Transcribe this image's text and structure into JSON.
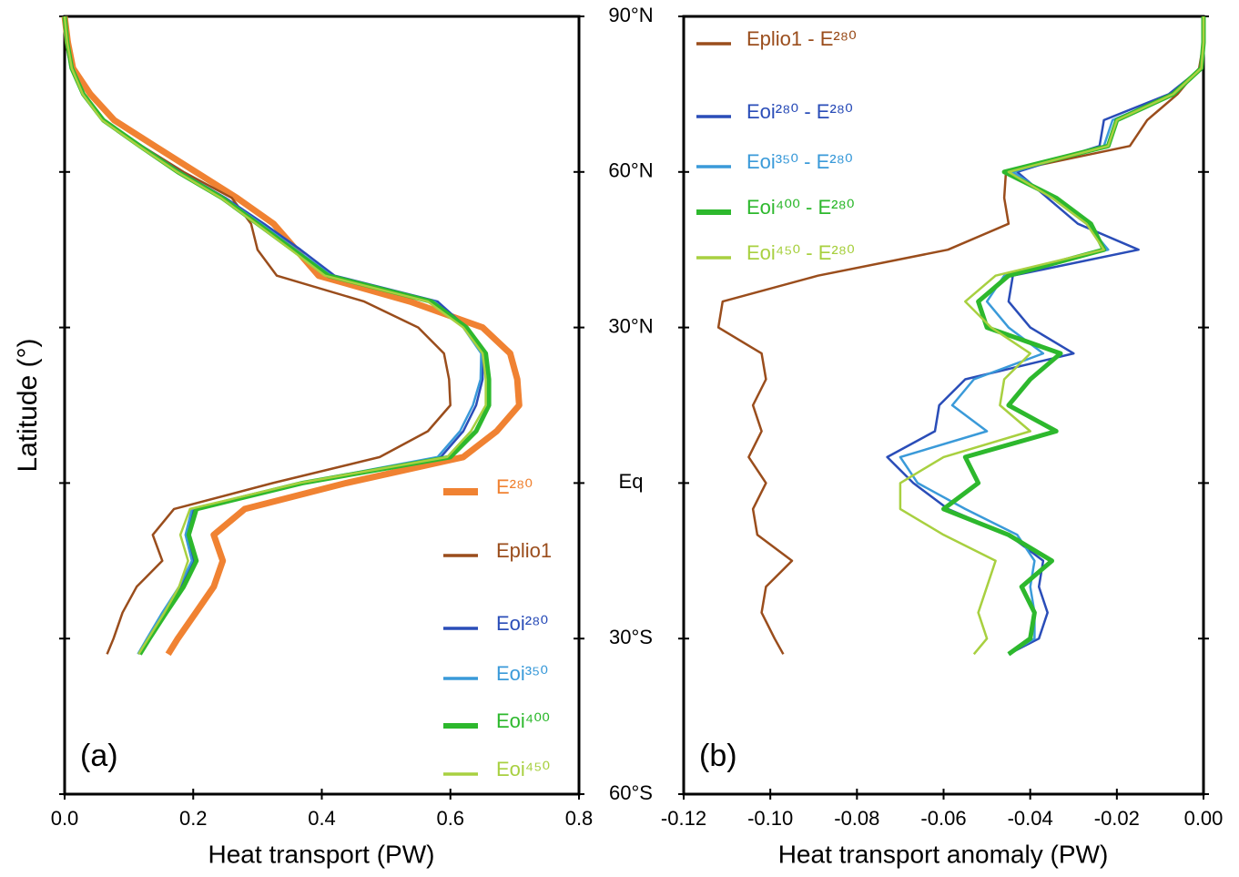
{
  "chart_data": [
    {
      "type": "line",
      "xlabel": "Heat transport (PW)",
      "ylabel": "Latitude (°)",
      "annotation": "(a)",
      "legend": "lower right",
      "xlim": [
        0,
        0.8
      ],
      "xticks": [
        {
          "value": 0,
          "label": "0.0"
        },
        0.2,
        0.4,
        0.6,
        0.8
      ],
      "ylim": [
        -60,
        90
      ],
      "y": [
        90,
        85,
        80,
        75,
        70,
        65,
        60,
        55,
        50,
        45,
        40,
        35,
        30,
        25,
        20,
        15,
        10,
        5,
        0,
        -5,
        -10,
        -15,
        -20,
        -25,
        -30,
        -33
      ],
      "series": [
        {
          "name": "E²⁸⁰",
          "color": "#f08232",
          "width": 7,
          "values": [
            0,
            0.005,
            0.013,
            0.04,
            0.077,
            0.14,
            0.204,
            0.268,
            0.325,
            0.36,
            0.395,
            0.537,
            0.65,
            0.693,
            0.704,
            0.707,
            0.672,
            0.62,
            0.438,
            0.28,
            0.232,
            0.246,
            0.232,
            0.204,
            0.176,
            0.161
          ]
        },
        {
          "name": "Eplio1",
          "color": "#9a4d1c",
          "width": 2.5,
          "values": [
            0,
            0.004,
            0.01,
            0.03,
            0.06,
            0.12,
            0.185,
            0.26,
            0.29,
            0.3,
            0.33,
            0.466,
            0.55,
            0.59,
            0.598,
            0.6,
            0.565,
            0.49,
            0.324,
            0.17,
            0.137,
            0.152,
            0.112,
            0.09,
            0.076,
            0.066
          ]
        },
        {
          "name": "Eoi²⁸⁰",
          "color": "#2a4db8",
          "width": 2.5,
          "values": [
            0,
            0.004,
            0.012,
            0.03,
            0.062,
            0.12,
            0.18,
            0.25,
            0.31,
            0.367,
            0.42,
            0.58,
            0.625,
            0.65,
            0.65,
            0.64,
            0.62,
            0.585,
            0.37,
            0.2,
            0.19,
            0.2,
            0.18,
            0.155,
            0.13,
            0.115
          ]
        },
        {
          "name": "Eoi³⁵⁰",
          "color": "#3a9ad9",
          "width": 2.5,
          "values": [
            0,
            0.004,
            0.011,
            0.029,
            0.06,
            0.118,
            0.178,
            0.248,
            0.305,
            0.36,
            0.415,
            0.575,
            0.62,
            0.648,
            0.647,
            0.635,
            0.615,
            0.58,
            0.365,
            0.198,
            0.188,
            0.198,
            0.178,
            0.152,
            0.128,
            0.114
          ]
        },
        {
          "name": "Eoi⁴⁰⁰",
          "color": "#2db82d",
          "width": 5,
          "values": [
            0,
            0.004,
            0.011,
            0.029,
            0.06,
            0.117,
            0.176,
            0.245,
            0.3,
            0.355,
            0.41,
            0.57,
            0.625,
            0.655,
            0.66,
            0.66,
            0.64,
            0.6,
            0.37,
            0.205,
            0.193,
            0.205,
            0.185,
            0.158,
            0.132,
            0.117
          ]
        },
        {
          "name": "Eoi⁴⁵⁰",
          "color": "#a8d040",
          "width": 2.5,
          "values": [
            0,
            0.004,
            0.011,
            0.028,
            0.058,
            0.115,
            0.175,
            0.243,
            0.298,
            0.352,
            0.405,
            0.565,
            0.62,
            0.65,
            0.655,
            0.655,
            0.632,
            0.595,
            0.365,
            0.195,
            0.18,
            0.192,
            0.178,
            0.155,
            0.13,
            0.115
          ]
        }
      ]
    },
    {
      "type": "line",
      "xlabel": "Heat transport anomaly (PW)",
      "annotation": "(b)",
      "legend": "upper left",
      "xlim": [
        -0.12,
        0
      ],
      "xticks": [
        -0.12,
        {
          "value": -0.1,
          "label": "-0.10"
        },
        -0.08,
        -0.06,
        -0.04,
        -0.02,
        {
          "value": 0,
          "label": "0.00"
        }
      ],
      "ylim": [
        -60,
        90
      ],
      "yticks": [
        {
          "value": -60,
          "label": "60°S"
        },
        {
          "value": -30,
          "label": "30°S"
        },
        {
          "value": 0,
          "label": "Eq"
        },
        {
          "value": 30,
          "label": "30°N"
        },
        {
          "value": 60,
          "label": "60°N"
        },
        {
          "value": 90,
          "label": "90°N"
        }
      ],
      "y": [
        90,
        85,
        80,
        75,
        70,
        65,
        60,
        55,
        50,
        45,
        40,
        35,
        30,
        25,
        20,
        15,
        10,
        5,
        0,
        -5,
        -10,
        -15,
        -20,
        -25,
        -30,
        -33
      ],
      "series": [
        {
          "name": "Eplio1 - E²⁸⁰",
          "color": "#9a4d1c",
          "width": 2.5,
          "values": [
            0,
            0,
            -0.001,
            -0.006,
            -0.013,
            -0.017,
            -0.0456,
            -0.046,
            -0.045,
            -0.059,
            -0.089,
            -0.111,
            -0.112,
            -0.102,
            -0.101,
            -0.104,
            -0.102,
            -0.105,
            -0.101,
            -0.104,
            -0.103,
            -0.095,
            -0.101,
            -0.102,
            -0.099,
            -0.097
          ]
        },
        {
          "name": "Eoi²⁸⁰ - E²⁸⁰",
          "color": "#2a4db8",
          "width": 2.5,
          "values": [
            0,
            0,
            -0.0005,
            -0.008,
            -0.023,
            -0.024,
            -0.043,
            -0.036,
            -0.029,
            -0.015,
            -0.044,
            -0.045,
            -0.04,
            -0.03,
            -0.055,
            -0.061,
            -0.062,
            -0.073,
            -0.067,
            -0.059,
            -0.045,
            -0.037,
            -0.038,
            -0.036,
            -0.038,
            -0.045
          ]
        },
        {
          "name": "Eoi³⁵⁰ - E²⁸⁰",
          "color": "#3a9ad9",
          "width": 2.5,
          "values": [
            0,
            0,
            -0.0005,
            -0.007,
            -0.021,
            -0.023,
            -0.044,
            -0.035,
            -0.027,
            -0.022,
            -0.046,
            -0.05,
            -0.045,
            -0.037,
            -0.053,
            -0.058,
            -0.05,
            -0.07,
            -0.066,
            -0.055,
            -0.043,
            -0.039,
            -0.04,
            -0.039,
            -0.039,
            -0.045
          ]
        },
        {
          "name": "Eoi⁴⁰⁰ - E²⁸⁰",
          "color": "#2db82d",
          "width": 5,
          "values": [
            0,
            0,
            -0.0005,
            -0.007,
            -0.02,
            -0.022,
            -0.046,
            -0.034,
            -0.026,
            -0.023,
            -0.045,
            -0.052,
            -0.05,
            -0.033,
            -0.04,
            -0.045,
            -0.034,
            -0.055,
            -0.052,
            -0.06,
            -0.045,
            -0.035,
            -0.042,
            -0.039,
            -0.04,
            -0.045
          ]
        },
        {
          "name": "Eoi⁴⁵⁰ - E²⁸⁰",
          "color": "#a8d040",
          "width": 2.5,
          "values": [
            0,
            0,
            -0.0005,
            -0.007,
            -0.02,
            -0.022,
            -0.045,
            -0.035,
            -0.027,
            -0.023,
            -0.048,
            -0.055,
            -0.049,
            -0.04,
            -0.046,
            -0.047,
            -0.04,
            -0.06,
            -0.07,
            -0.07,
            -0.06,
            -0.048,
            -0.05,
            -0.052,
            -0.05,
            -0.053
          ]
        }
      ]
    }
  ]
}
